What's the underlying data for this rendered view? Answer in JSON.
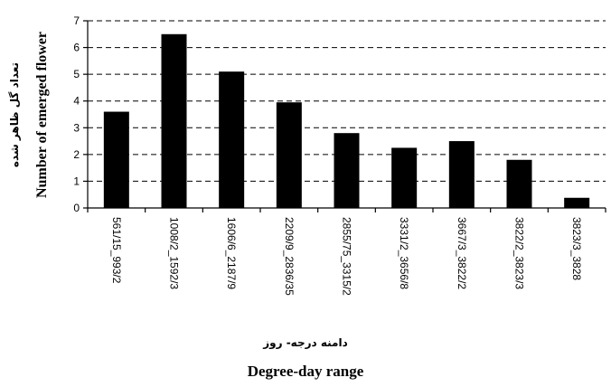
{
  "chart_data": {
    "type": "bar",
    "categories": [
      "561/15_993/2",
      "1008/2_1592/3",
      "1606/6_2187/9",
      "2209/9_2836/35",
      "2855/75_3315/2",
      "3331/2_3656/8",
      "3667/3_3822/2",
      "3822/2_3823/3",
      "3823/3_3828"
    ],
    "values": [
      3.6,
      6.5,
      5.1,
      3.95,
      2.8,
      2.25,
      2.5,
      1.8,
      0.38
    ],
    "ylim": [
      0,
      7
    ],
    "yticks": [
      0,
      1,
      2,
      3,
      4,
      5,
      6,
      7
    ],
    "ylabel_en": "Number of emerged flower",
    "ylabel_fa": "تعداد گل ظاهر شده",
    "xlabel_en": "Degree-day range",
    "xlabel_fa": "دامنه درجه- روز",
    "grid": "horizontal dashed",
    "bar_color": "#000000"
  }
}
